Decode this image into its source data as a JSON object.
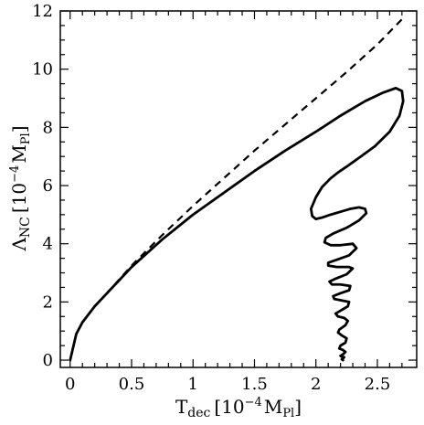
{
  "chart_data": {
    "type": "line",
    "title": "",
    "xlabel": {
      "main": "T",
      "sub": "dec",
      "unit_prefix": "[10",
      "unit_exp": "−4",
      "unit_main": "M",
      "unit_sub": "Pl",
      "unit_suffix": "]"
    },
    "ylabel": {
      "main": "Λ",
      "sub": "NC",
      "unit_prefix": "[10",
      "unit_exp": "−4",
      "unit_main": "M",
      "unit_sub": "Pl",
      "unit_suffix": "]"
    },
    "xlim": [
      -0.08,
      2.82
    ],
    "ylim": [
      -0.25,
      12
    ],
    "xticks": [
      0,
      0.5,
      1,
      1.5,
      2,
      2.5
    ],
    "xtick_labels": [
      "0",
      "0.5",
      "1",
      "1.5",
      "2",
      "2.5"
    ],
    "yticks": [
      0,
      2,
      4,
      6,
      8,
      10,
      12
    ],
    "ytick_labels": [
      "0",
      "2",
      "4",
      "6",
      "8",
      "10",
      "12"
    ],
    "grid": false,
    "series": [
      {
        "style": "dashed",
        "x": [
          0.0,
          0.05,
          0.1,
          0.2,
          0.3,
          0.5,
          0.75,
          1.0,
          1.25,
          1.5,
          1.75,
          2.0,
          2.25,
          2.5,
          2.72
        ],
        "y": [
          0.0,
          0.9,
          1.3,
          1.85,
          2.3,
          3.25,
          4.3,
          5.3,
          6.25,
          7.2,
          8.1,
          9.0,
          9.9,
          10.85,
          11.8
        ]
      },
      {
        "style": "solid",
        "x": [
          0.0,
          0.05,
          0.1,
          0.2,
          0.3,
          0.5,
          0.75,
          1.0,
          1.25,
          1.5,
          1.75,
          2.0,
          2.2,
          2.4,
          2.55,
          2.65,
          2.7,
          2.71,
          2.68,
          2.6,
          2.48,
          2.35,
          2.25,
          2.18,
          2.12,
          2.05,
          2.0,
          1.96,
          1.97,
          2.0,
          2.05,
          2.12,
          2.2,
          2.28,
          2.35,
          2.4,
          2.41,
          2.35,
          2.25,
          2.14,
          2.08,
          2.07,
          2.12,
          2.2,
          2.3,
          2.33,
          2.27,
          2.17,
          2.1,
          2.1,
          2.17,
          2.27,
          2.3,
          2.25,
          2.16,
          2.11,
          2.13,
          2.2,
          2.28,
          2.27,
          2.2,
          2.14,
          2.15,
          2.21,
          2.27,
          2.26,
          2.2,
          2.16,
          2.18,
          2.23,
          2.26,
          2.24,
          2.19,
          2.18,
          2.21,
          2.25,
          2.24,
          2.2,
          2.19,
          2.22,
          2.24,
          2.22,
          2.2,
          2.21,
          2.23,
          2.22,
          2.21,
          2.22
        ],
        "y": [
          0.0,
          0.9,
          1.3,
          1.85,
          2.3,
          3.2,
          4.15,
          5.0,
          5.75,
          6.5,
          7.2,
          7.85,
          8.4,
          8.9,
          9.2,
          9.35,
          9.25,
          8.9,
          8.4,
          7.85,
          7.35,
          6.95,
          6.65,
          6.45,
          6.25,
          5.95,
          5.6,
          5.2,
          4.95,
          4.85,
          4.9,
          5.0,
          5.1,
          5.2,
          5.25,
          5.2,
          5.05,
          4.8,
          4.55,
          4.35,
          4.2,
          4.05,
          3.95,
          3.95,
          4.0,
          3.85,
          3.6,
          3.45,
          3.35,
          3.25,
          3.2,
          3.2,
          3.15,
          2.95,
          2.8,
          2.7,
          2.6,
          2.6,
          2.55,
          2.4,
          2.3,
          2.2,
          2.1,
          2.05,
          2.0,
          1.85,
          1.7,
          1.6,
          1.5,
          1.45,
          1.35,
          1.2,
          1.05,
          0.95,
          0.85,
          0.75,
          0.6,
          0.5,
          0.4,
          0.35,
          0.28,
          0.2,
          0.15,
          0.12,
          0.1,
          0.06,
          0.03,
          0.0
        ]
      }
    ]
  }
}
